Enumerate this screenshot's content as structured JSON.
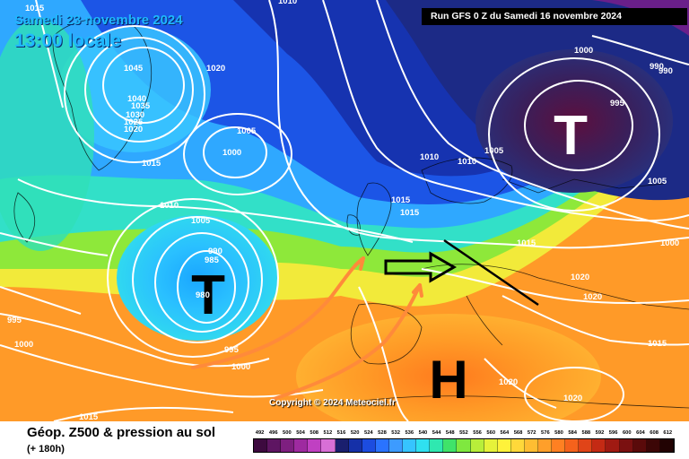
{
  "header": {
    "date": "Samedi 23 novembre 2024",
    "time": "13:00 locale",
    "run": "Run GFS 0 Z du Samedi 16 novembre 2024"
  },
  "footer": {
    "product": "Géop. Z500 & pression au sol",
    "lead": "(+ 180h)",
    "copyright": "Copyright © 2024 Meteociel.fr"
  },
  "pressure_centers": [
    {
      "symbol": "T",
      "kind": "low",
      "color": "#000000"
    },
    {
      "symbol": "T",
      "kind": "low",
      "color": "#ffffff"
    },
    {
      "symbol": "H",
      "kind": "high",
      "color": "#000000"
    }
  ],
  "isobar_labels": [
    "1015",
    "1045",
    "1020",
    "1040",
    "1035",
    "1030",
    "1025",
    "1020",
    "1005",
    "1000",
    "1015",
    "1010",
    "1005",
    "990",
    "985",
    "980",
    "995",
    "1000",
    "995",
    "1000",
    "1015",
    "1010",
    "1015",
    "1015",
    "1010",
    "1010",
    "1005",
    "1000",
    "990",
    "990",
    "995",
    "1005",
    "1015",
    "1020",
    "1020",
    "1000",
    "1015",
    "1020",
    "1020"
  ],
  "legend": {
    "values": [
      "492",
      "496",
      "500",
      "504",
      "508",
      "512",
      "516",
      "520",
      "524",
      "528",
      "532",
      "536",
      "540",
      "544",
      "548",
      "552",
      "556",
      "560",
      "564",
      "568",
      "572",
      "576",
      "580",
      "584",
      "588",
      "592",
      "596",
      "600",
      "604",
      "608",
      "612"
    ],
    "colors": [
      "#3d0a3f",
      "#5e1562",
      "#7e1f80",
      "#9e2aa0",
      "#c040c2",
      "#d86fd6",
      "#1a1f6e",
      "#1530a8",
      "#1c4ce0",
      "#2a73ff",
      "#3d9bff",
      "#36c4ff",
      "#2fe0f0",
      "#2fe8b0",
      "#3fe36a",
      "#7fe83f",
      "#b8ee3a",
      "#e6f23a",
      "#fff23a",
      "#ffd83a",
      "#ffbd32",
      "#ff9f2a",
      "#ff8022",
      "#f5621c",
      "#e04418",
      "#c42a14",
      "#a01a12",
      "#7a1010",
      "#5a0a0a",
      "#3c0606",
      "#220303"
    ]
  }
}
